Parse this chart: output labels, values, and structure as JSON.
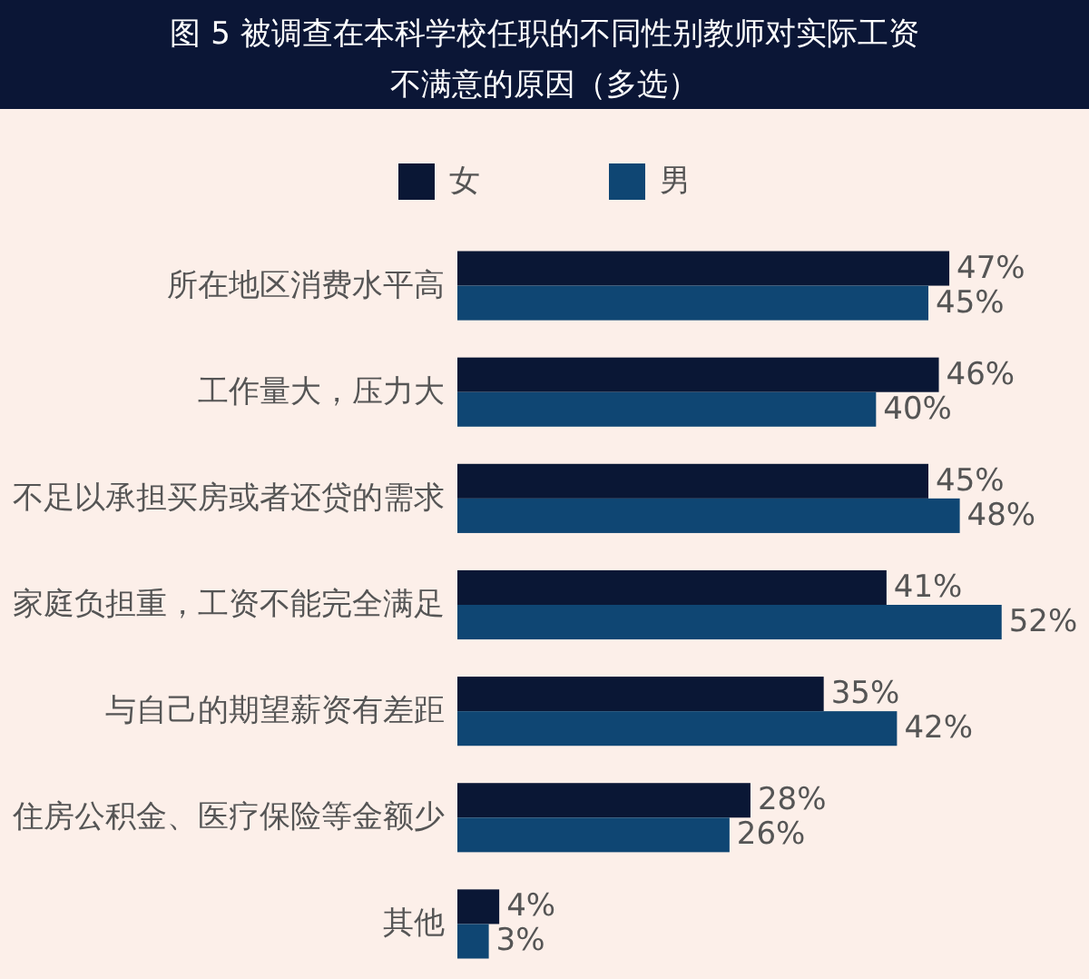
{
  "chart_data": {
    "type": "bar",
    "orientation": "horizontal",
    "title": "图 5 被调查在本科学校任职的不同性别教师对实际工资不满意的原因（多选）",
    "categories": [
      "所在地区消费水平高",
      "工作量大，压力大",
      "不足以承担买房或者还贷的需求",
      "家庭负担重，工资不能完全满足",
      "与自己的期望薪资有差距",
      "住房公积金、医疗保险等金额少",
      "其他"
    ],
    "series": [
      {
        "name": "女",
        "color": "#0a1735",
        "values": [
          47,
          46,
          45,
          41,
          35,
          28,
          4
        ],
        "value_labels": [
          "47%",
          "46%",
          "45%",
          "41%",
          "35%",
          "28%",
          "4%"
        ]
      },
      {
        "name": "男",
        "color": "#0f4673",
        "values": [
          45,
          40,
          48,
          52,
          42,
          26,
          3
        ],
        "value_labels": [
          "45%",
          "40%",
          "48%",
          "52%",
          "42%",
          "26%",
          "3%"
        ]
      }
    ],
    "xlim": [
      0,
      60
    ],
    "tick_labels": "y",
    "legend": "top"
  }
}
